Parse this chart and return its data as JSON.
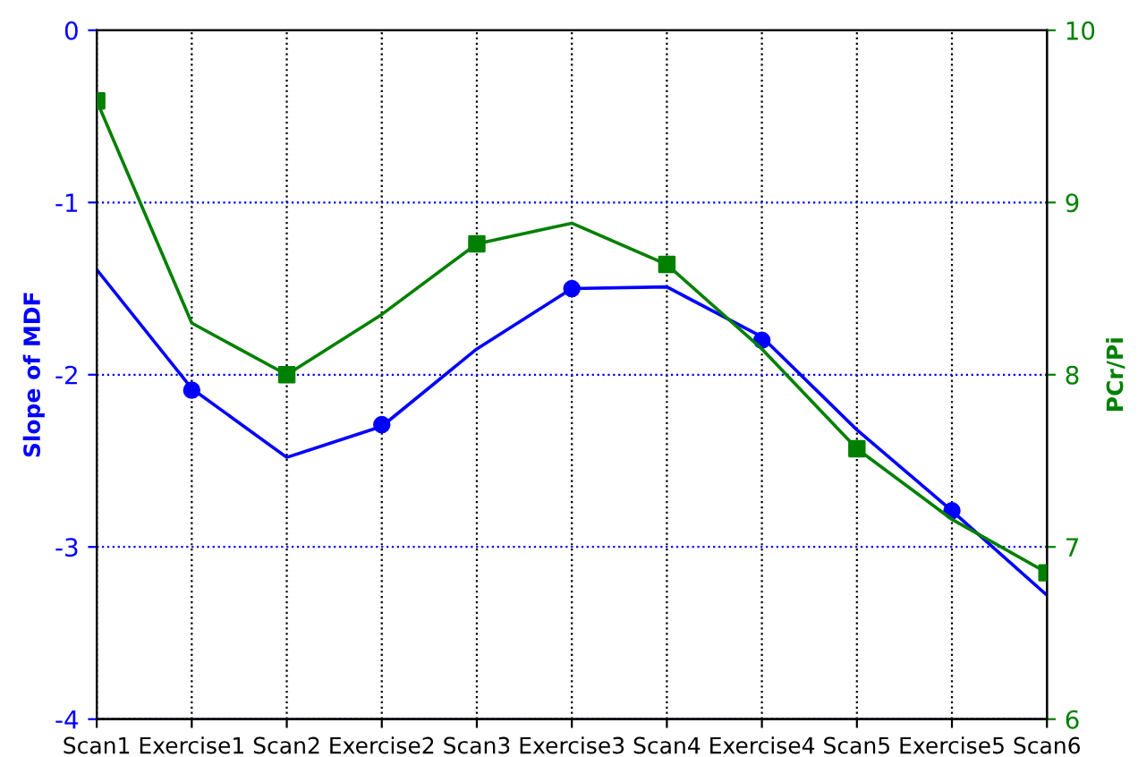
{
  "chart_data": {
    "type": "line",
    "ylabel": "Slope of MDF",
    "y2label": "PCr/Pi",
    "categories": [
      "Scan1",
      "Exercise1",
      "Scan2",
      "Exercise2",
      "Scan3",
      "Exercise3",
      "Scan4",
      "Exercise4",
      "Scan5",
      "Exercise5",
      "Scan6"
    ],
    "series": [
      {
        "color": "#0000ff",
        "marker": "none",
        "values": [
          -1.39,
          -2.08,
          -2.48,
          -2.3,
          -1.85,
          -1.5,
          -1.49,
          -1.78,
          -2.32,
          -2.79,
          -3.28
        ]
      },
      {
        "type": "scatter",
        "color": "#0000ff",
        "marker": "circle",
        "values": [
          null,
          -2.09,
          null,
          -2.29,
          null,
          -1.5,
          null,
          -1.8,
          null,
          -2.79,
          null
        ]
      },
      {
        "axis": "y2",
        "color": "#008000",
        "marker": "none",
        "values": [
          9.59,
          8.3,
          8.0,
          8.35,
          8.76,
          8.88,
          8.64,
          8.15,
          7.57,
          7.16,
          6.85
        ]
      },
      {
        "type": "scatter",
        "axis": "y2",
        "color": "#008000",
        "marker": "square",
        "values": [
          9.59,
          null,
          8.0,
          null,
          8.76,
          null,
          8.64,
          null,
          7.57,
          null,
          6.85
        ]
      }
    ],
    "ylim": [
      -4,
      0
    ],
    "yticks": [
      -4,
      -3,
      -2,
      -1,
      0
    ],
    "y2lim": [
      6,
      10
    ],
    "y2ticks": [
      6,
      7,
      8,
      9,
      10
    ],
    "grid": true
  }
}
